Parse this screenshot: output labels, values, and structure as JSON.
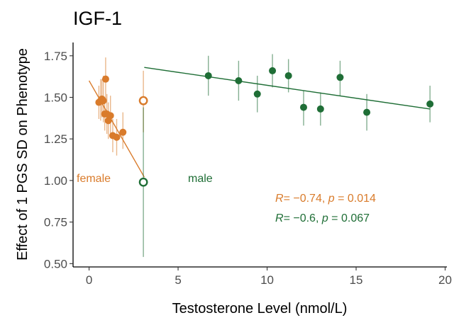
{
  "chart_data": {
    "type": "scatter",
    "title": "IGF-1",
    "xlabel": "Testosterone Level (nmol/L)",
    "ylabel": "Effect of 1 PGS SD on Phenotype",
    "xlim": [
      -0.9,
      20.1
    ],
    "ylim": [
      0.48,
      1.83
    ],
    "x_ticks": [
      0,
      5,
      10,
      15,
      20
    ],
    "y_ticks": [
      0.5,
      0.75,
      1.0,
      1.25,
      1.5,
      1.75
    ],
    "x_tick_labels": [
      "0",
      "5",
      "10",
      "15",
      "20"
    ],
    "y_tick_labels": [
      "0.50",
      "0.75",
      "1.00",
      "1.25",
      "1.50",
      "1.75"
    ],
    "grid": false,
    "legend": "none",
    "series": [
      {
        "name": "female",
        "color": "#D97B2B",
        "points": [
          {
            "x": 0.55,
            "y": 1.47,
            "lo": 1.37,
            "hi": 1.57
          },
          {
            "x": 0.65,
            "y": 1.48,
            "lo": 1.36,
            "hi": 1.61
          },
          {
            "x": 0.72,
            "y": 1.49,
            "lo": 1.38,
            "hi": 1.61
          },
          {
            "x": 0.8,
            "y": 1.48,
            "lo": 1.35,
            "hi": 1.63
          },
          {
            "x": 0.88,
            "y": 1.4,
            "lo": 1.3,
            "hi": 1.5
          },
          {
            "x": 0.93,
            "y": 1.61,
            "lo": 1.48,
            "hi": 1.74
          },
          {
            "x": 1.0,
            "y": 1.4,
            "lo": 1.28,
            "hi": 1.52
          },
          {
            "x": 1.08,
            "y": 1.36,
            "lo": 1.25,
            "hi": 1.47
          },
          {
            "x": 1.2,
            "y": 1.39,
            "lo": 1.27,
            "hi": 1.51
          },
          {
            "x": 1.33,
            "y": 1.27,
            "lo": 1.17,
            "hi": 1.37
          },
          {
            "x": 1.55,
            "y": 1.26,
            "lo": 1.15,
            "hi": 1.37
          },
          {
            "x": 1.9,
            "y": 1.29,
            "lo": 1.19,
            "hi": 1.41
          }
        ],
        "open_point": {
          "x": 3.05,
          "y": 1.48,
          "lo": 1.29,
          "hi": 1.66
        },
        "fit": {
          "x1": 0.0,
          "y1": 1.6,
          "x2": 3.1,
          "y2": 1.02
        },
        "label": "female",
        "stat": {
          "r_symbol": "R",
          "r_value": "= −0.74",
          "sep": ", ",
          "p_symbol": "p",
          "p_value": " = 0.014"
        }
      },
      {
        "name": "male",
        "color": "#1F6E36",
        "points": [
          {
            "x": 6.7,
            "y": 1.63,
            "lo": 1.51,
            "hi": 1.75
          },
          {
            "x": 8.4,
            "y": 1.6,
            "lo": 1.48,
            "hi": 1.72
          },
          {
            "x": 9.45,
            "y": 1.52,
            "lo": 1.41,
            "hi": 1.63
          },
          {
            "x": 10.3,
            "y": 1.66,
            "lo": 1.56,
            "hi": 1.76
          },
          {
            "x": 11.2,
            "y": 1.63,
            "lo": 1.53,
            "hi": 1.73
          },
          {
            "x": 12.05,
            "y": 1.44,
            "lo": 1.33,
            "hi": 1.54
          },
          {
            "x": 13.0,
            "y": 1.43,
            "lo": 1.33,
            "hi": 1.53
          },
          {
            "x": 14.1,
            "y": 1.62,
            "lo": 1.51,
            "hi": 1.72
          },
          {
            "x": 15.6,
            "y": 1.41,
            "lo": 1.3,
            "hi": 1.52
          },
          {
            "x": 19.15,
            "y": 1.46,
            "lo": 1.35,
            "hi": 1.57
          }
        ],
        "open_point": {
          "x": 3.05,
          "y": 0.99,
          "lo": 0.54,
          "hi": 1.44
        },
        "fit": {
          "x1": 3.1,
          "y1": 1.68,
          "x2": 19.15,
          "y2": 1.43
        },
        "label": "male",
        "stat": {
          "r_symbol": "R",
          "r_value": "= −0.6",
          "sep": ", ",
          "p_symbol": "p",
          "p_value": " = 0.067"
        }
      }
    ]
  }
}
